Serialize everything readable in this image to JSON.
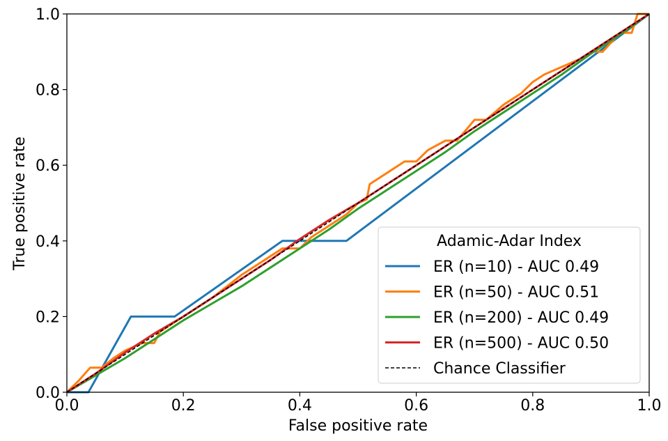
{
  "chart_data": {
    "type": "line",
    "title": "",
    "xlabel": "False positive rate",
    "ylabel": "True positive rate",
    "xlim": [
      0.0,
      1.0
    ],
    "ylim": [
      0.0,
      1.0
    ],
    "xticks": [
      "0.0",
      "0.2",
      "0.4",
      "0.6",
      "0.8",
      "1.0"
    ],
    "yticks": [
      "0.0",
      "0.2",
      "0.4",
      "0.6",
      "0.8",
      "1.0"
    ],
    "grid": false,
    "legend": {
      "title": "Adamic-Adar Index",
      "placement": "lower-right"
    },
    "series": [
      {
        "name": "ER (n=10) - AUC 0.49",
        "color": "#1f77b4",
        "style": "solid",
        "x": [
          0.0,
          0.037,
          0.11,
          0.185,
          0.37,
          0.48,
          1.0
        ],
        "y": [
          0.0,
          0.0,
          0.2,
          0.2,
          0.4,
          0.4,
          1.0
        ]
      },
      {
        "name": "ER (n=50) - AUC 0.51",
        "color": "#ff7f0e",
        "style": "solid",
        "x": [
          0.0,
          0.02,
          0.04,
          0.06,
          0.08,
          0.1,
          0.13,
          0.15,
          0.16,
          0.2,
          0.25,
          0.3,
          0.33,
          0.37,
          0.4,
          0.42,
          0.45,
          0.48,
          0.5,
          0.515,
          0.52,
          0.55,
          0.58,
          0.6,
          0.62,
          0.65,
          0.67,
          0.7,
          0.72,
          0.75,
          0.78,
          0.8,
          0.82,
          0.85,
          0.88,
          0.9,
          0.92,
          0.95,
          0.97,
          0.98,
          1.0
        ],
        "y": [
          0.0,
          0.03,
          0.065,
          0.065,
          0.09,
          0.11,
          0.13,
          0.13,
          0.16,
          0.2,
          0.25,
          0.31,
          0.34,
          0.38,
          0.38,
          0.41,
          0.44,
          0.47,
          0.5,
          0.51,
          0.55,
          0.58,
          0.61,
          0.61,
          0.64,
          0.665,
          0.665,
          0.72,
          0.72,
          0.76,
          0.79,
          0.82,
          0.84,
          0.86,
          0.88,
          0.9,
          0.9,
          0.95,
          0.95,
          1.0,
          1.0
        ]
      },
      {
        "name": "ER (n=200) - AUC 0.49",
        "color": "#2ca02c",
        "style": "solid",
        "x": [
          0.0,
          0.05,
          0.1,
          0.15,
          0.2,
          0.25,
          0.3,
          0.35,
          0.4,
          0.45,
          0.5,
          0.55,
          0.6,
          0.65,
          0.7,
          0.75,
          0.8,
          0.85,
          0.9,
          0.95,
          1.0
        ],
        "y": [
          0.0,
          0.045,
          0.09,
          0.14,
          0.19,
          0.235,
          0.28,
          0.33,
          0.38,
          0.43,
          0.485,
          0.535,
          0.585,
          0.635,
          0.69,
          0.74,
          0.79,
          0.84,
          0.895,
          0.945,
          1.0
        ]
      },
      {
        "name": "ER (n=500) - AUC 0.50",
        "color": "#d62728",
        "style": "solid",
        "x": [
          0.0,
          0.05,
          0.1,
          0.15,
          0.2,
          0.25,
          0.3,
          0.35,
          0.4,
          0.45,
          0.5,
          0.55,
          0.6,
          0.65,
          0.7,
          0.75,
          0.8,
          0.85,
          0.9,
          0.95,
          1.0
        ],
        "y": [
          0.0,
          0.05,
          0.105,
          0.155,
          0.2,
          0.25,
          0.3,
          0.35,
          0.405,
          0.455,
          0.5,
          0.55,
          0.6,
          0.65,
          0.7,
          0.75,
          0.8,
          0.85,
          0.9,
          0.95,
          1.0
        ]
      },
      {
        "name": "Chance Classifier",
        "color": "#000000",
        "style": "dashed",
        "x": [
          0.0,
          1.0
        ],
        "y": [
          0.0,
          1.0
        ]
      }
    ]
  }
}
